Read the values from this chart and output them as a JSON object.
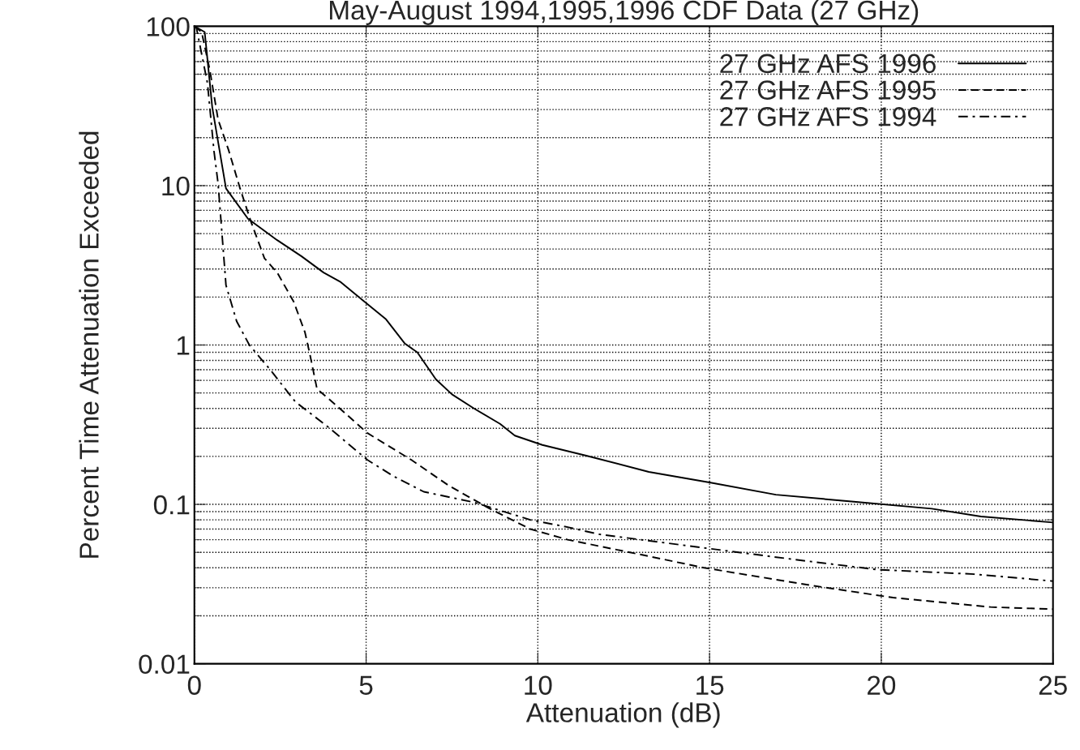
{
  "chart_data": {
    "type": "line",
    "title": "May-August 1994,1995,1996 CDF Data (27 GHz)",
    "xlabel": "Attenuation (dB)",
    "ylabel": "Percent Time Attenuation Exceeded",
    "log": "y",
    "xlim": [
      0,
      25
    ],
    "xticks": [
      0,
      5,
      10,
      15,
      20,
      25
    ],
    "ylim": [
      0.01,
      100
    ],
    "yticks": [
      {
        "value": 0.01,
        "label": "0.01"
      },
      {
        "value": 0.1,
        "label": "0.1"
      },
      {
        "value": 1,
        "label": "1"
      },
      {
        "value": 10,
        "label": "10"
      },
      {
        "value": 100,
        "label": "100"
      }
    ],
    "grid": true,
    "legend": "top right",
    "marker": "none",
    "series": [
      {
        "name": "27 GHz AFS 1996",
        "color": "#000000",
        "line_style": "solid",
        "x": [
          0,
          0.3,
          0.52,
          0.92,
          1.56,
          2.41,
          3.12,
          3.76,
          4.24,
          4.95,
          5.58,
          6.13,
          6.49,
          7.03,
          7.5,
          8.14,
          8.9,
          9.33,
          10.13,
          11.41,
          13.23,
          15.03,
          16.93,
          19.2,
          21.47,
          22.9,
          25
        ],
        "values": [
          100,
          92,
          31,
          9.6,
          6.2,
          4.55,
          3.6,
          2.85,
          2.5,
          1.87,
          1.45,
          1.02,
          0.9,
          0.61,
          0.49,
          0.4,
          0.32,
          0.27,
          0.236,
          0.202,
          0.16,
          0.137,
          0.115,
          0.104,
          0.094,
          0.084,
          0.077
        ]
      },
      {
        "name": "27 GHz AFS 1995",
        "color": "#000000",
        "line_style": "dashed",
        "x": [
          0,
          0.21,
          0.45,
          0.69,
          1.0,
          1.33,
          1.64,
          2.04,
          2.41,
          2.89,
          3.22,
          3.36,
          3.57,
          4.12,
          5.04,
          6.32,
          7.41,
          8.6,
          9.78,
          10.87,
          12.88,
          14.84,
          17.97,
          20.34,
          23.18,
          25
        ],
        "values": [
          100,
          92,
          53,
          26,
          16.6,
          9.6,
          6.0,
          3.5,
          2.85,
          1.87,
          1.2,
          0.88,
          0.53,
          0.42,
          0.28,
          0.19,
          0.131,
          0.094,
          0.07,
          0.06,
          0.049,
          0.04,
          0.031,
          0.026,
          0.0227,
          0.022
        ]
      },
      {
        "name": "27 GHz AFS 1994",
        "color": "#000000",
        "line_style": "dashdot",
        "x": [
          0,
          0.05,
          0.38,
          0.57,
          0.69,
          0.92,
          1.23,
          1.6,
          2.23,
          2.94,
          3.86,
          5.04,
          5.78,
          6.68,
          8.14,
          9.78,
          10.87,
          11.77,
          14.94,
          17.5,
          19.86,
          22.7,
          25
        ],
        "values": [
          100,
          100,
          44,
          16.5,
          10.3,
          2.37,
          1.41,
          1.0,
          0.69,
          0.44,
          0.31,
          0.19,
          0.151,
          0.12,
          0.103,
          0.08,
          0.072,
          0.065,
          0.053,
          0.045,
          0.039,
          0.0365,
          0.033
        ]
      }
    ]
  }
}
